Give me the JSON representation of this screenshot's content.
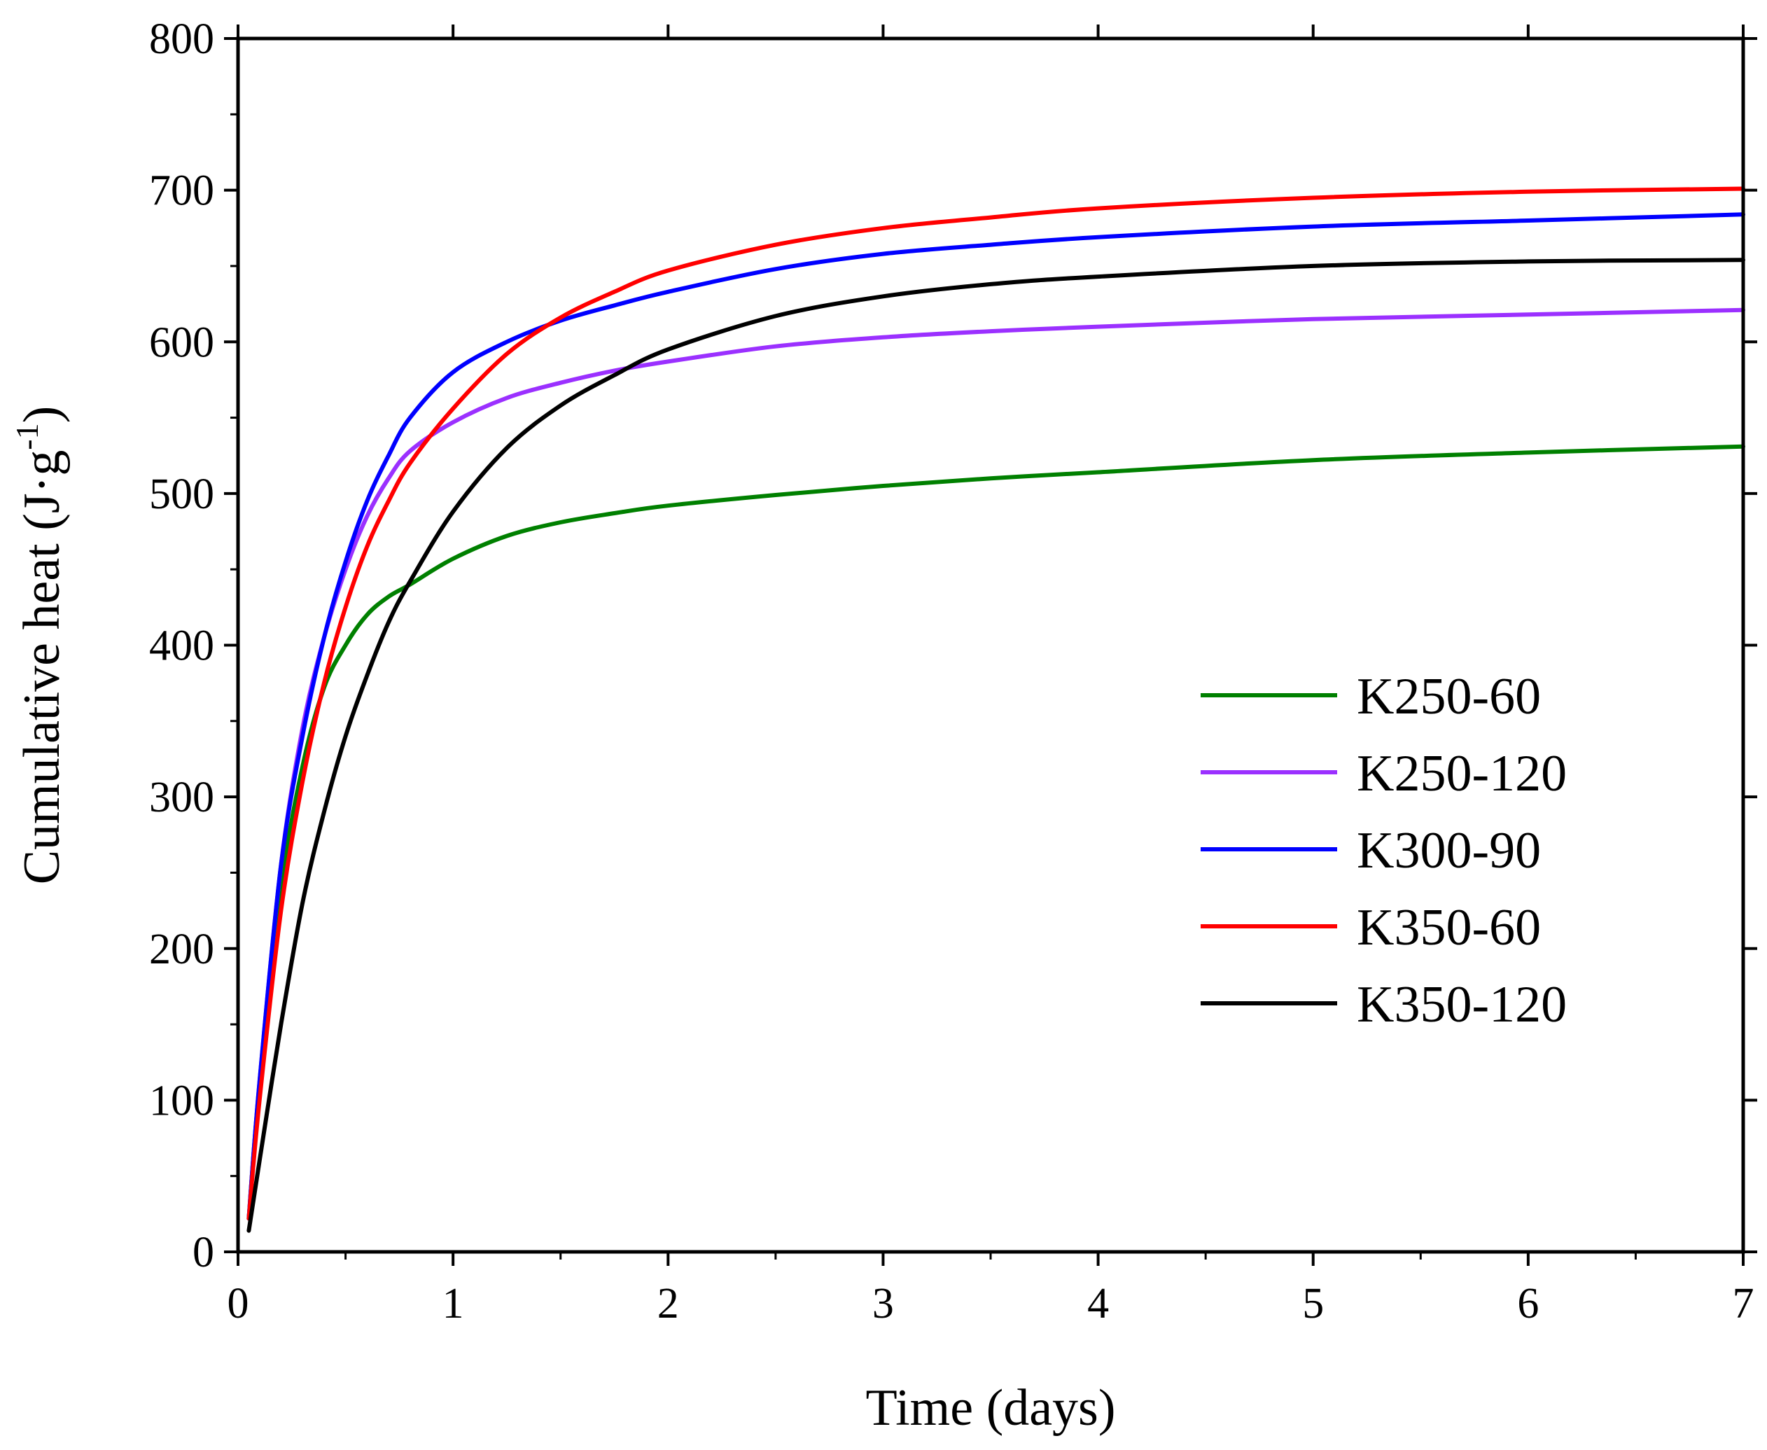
{
  "chart_data": {
    "type": "line",
    "title": "",
    "xlabel": "Time (days)",
    "ylabel": {
      "base": "Cumulative heat (J·g",
      "exponent": "-1",
      "close": ")"
    },
    "xlim": [
      0,
      7
    ],
    "ylim": [
      0,
      800
    ],
    "x_ticks": [
      "0",
      "1",
      "2",
      "3",
      "4",
      "5",
      "6",
      "7"
    ],
    "y_ticks": [
      "0",
      "100",
      "200",
      "300",
      "400",
      "500",
      "600",
      "700",
      "800"
    ],
    "grid": false,
    "legend_position": "center-right",
    "x": [
      0.05,
      0.1,
      0.2,
      0.3,
      0.4,
      0.5,
      0.6,
      0.7,
      0.8,
      1.0,
      1.25,
      1.5,
      1.75,
      2.0,
      2.5,
      3.0,
      3.5,
      4.0,
      5.0,
      6.0,
      7.0
    ],
    "series": [
      {
        "name": "K250-60",
        "color": "#008000",
        "values": [
          22,
          110,
          240,
          320,
          372,
          400,
          420,
          432,
          440,
          457,
          472,
          481,
          487,
          492,
          499,
          505,
          510,
          514,
          522,
          527,
          531
        ]
      },
      {
        "name": "K250-120",
        "color": "#9B30FF",
        "values": [
          22,
          112,
          255,
          345,
          405,
          450,
          485,
          510,
          528,
          547,
          563,
          573,
          581,
          587,
          597,
          603,
          607,
          610,
          615,
          618,
          621
        ]
      },
      {
        "name": "K300-90",
        "color": "#0000FF",
        "values": [
          22,
          112,
          255,
          340,
          405,
          455,
          495,
          525,
          550,
          580,
          600,
          614,
          624,
          633,
          648,
          658,
          664,
          669,
          676,
          680,
          684
        ]
      },
      {
        "name": "K350-60",
        "color": "#FF0000",
        "values": [
          22,
          100,
          225,
          310,
          375,
          425,
          465,
          495,
          520,
          556,
          592,
          616,
          633,
          647,
          664,
          675,
          682,
          688,
          695,
          699,
          701
        ]
      },
      {
        "name": "K350-120",
        "color": "#000000",
        "values": [
          14,
          60,
          150,
          230,
          290,
          340,
          380,
          415,
          442,
          488,
          530,
          558,
          578,
          595,
          617,
          630,
          638,
          643,
          650,
          653,
          654
        ]
      }
    ]
  }
}
